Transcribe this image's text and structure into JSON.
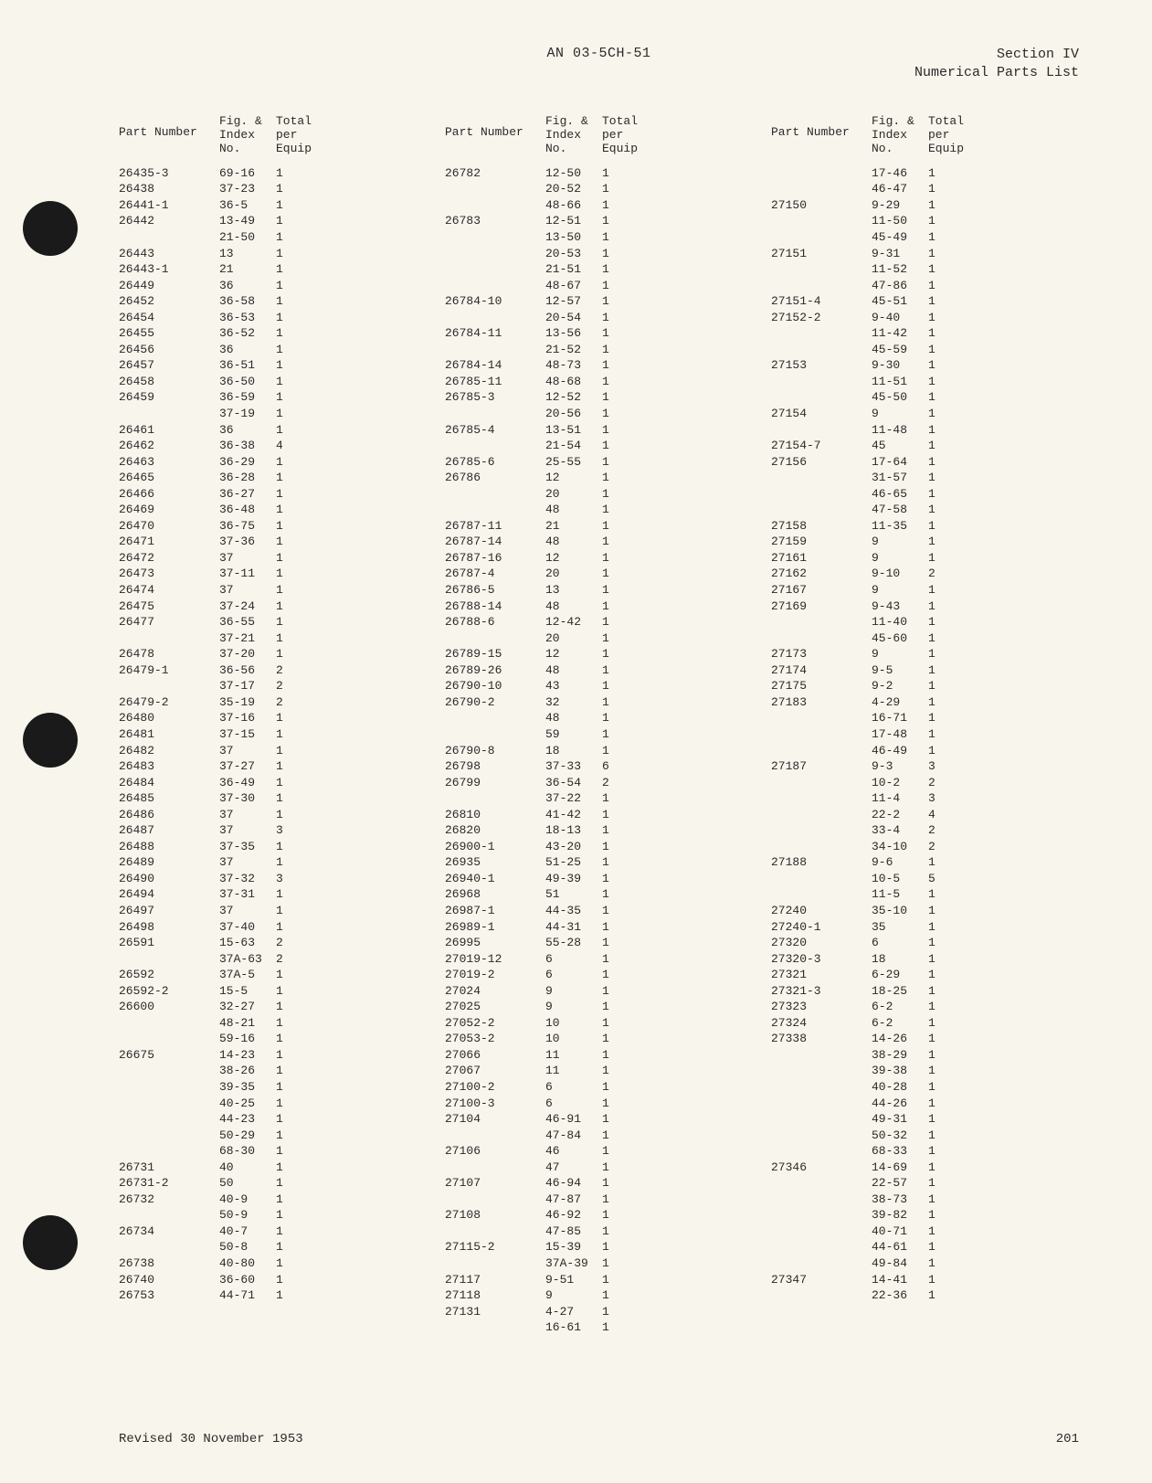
{
  "header": {
    "doc_id": "AN 03-5CH-51",
    "section_line1": "Section IV",
    "section_line2": "Numerical Parts List"
  },
  "column_headers": {
    "part": "Part Number",
    "fig1": "Fig. &",
    "fig2": "Index",
    "fig3": "No.",
    "tot1": "Total",
    "tot2": "per",
    "tot3": "Equip"
  },
  "columns": [
    [
      {
        "p": "26435-3",
        "f": "69-16",
        "t": "1"
      },
      {
        "p": "26438",
        "f": "37-23",
        "t": "1"
      },
      {
        "p": "26441-1",
        "f": "36-5",
        "t": "1"
      },
      {
        "p": "26442",
        "f": "13-49",
        "t": "1"
      },
      {
        "p": "",
        "f": "21-50",
        "t": "1"
      },
      {
        "p": "26443",
        "f": "13",
        "t": "1"
      },
      {
        "p": "26443-1",
        "f": "21",
        "t": "1"
      },
      {
        "p": "26449",
        "f": "36",
        "t": "1"
      },
      {
        "p": "26452",
        "f": "36-58",
        "t": "1"
      },
      {
        "p": "26454",
        "f": "36-53",
        "t": "1"
      },
      {
        "p": "26455",
        "f": "36-52",
        "t": "1"
      },
      {
        "p": "26456",
        "f": "36",
        "t": "1"
      },
      {
        "p": "26457",
        "f": "36-51",
        "t": "1"
      },
      {
        "p": "26458",
        "f": "36-50",
        "t": "1"
      },
      {
        "p": "26459",
        "f": "36-59",
        "t": "1"
      },
      {
        "p": "",
        "f": "37-19",
        "t": "1"
      },
      {
        "p": "26461",
        "f": "36",
        "t": "1"
      },
      {
        "p": "26462",
        "f": "36-38",
        "t": "4"
      },
      {
        "p": "26463",
        "f": "36-29",
        "t": "1"
      },
      {
        "p": "26465",
        "f": "36-28",
        "t": "1"
      },
      {
        "p": "26466",
        "f": "36-27",
        "t": "1"
      },
      {
        "p": "26469",
        "f": "36-48",
        "t": "1"
      },
      {
        "p": "26470",
        "f": "36-75",
        "t": "1"
      },
      {
        "p": "26471",
        "f": "37-36",
        "t": "1"
      },
      {
        "p": "26472",
        "f": "37",
        "t": "1"
      },
      {
        "p": "26473",
        "f": "37-11",
        "t": "1"
      },
      {
        "p": "26474",
        "f": "37",
        "t": "1"
      },
      {
        "p": "26475",
        "f": "37-24",
        "t": "1"
      },
      {
        "p": "26477",
        "f": "36-55",
        "t": "1"
      },
      {
        "p": "",
        "f": "37-21",
        "t": "1"
      },
      {
        "p": "26478",
        "f": "37-20",
        "t": "1"
      },
      {
        "p": "26479-1",
        "f": "36-56",
        "t": "2"
      },
      {
        "p": "",
        "f": "37-17",
        "t": "2"
      },
      {
        "p": "26479-2",
        "f": "35-19",
        "t": "2"
      },
      {
        "p": "26480",
        "f": "37-16",
        "t": "1"
      },
      {
        "p": "26481",
        "f": "37-15",
        "t": "1"
      },
      {
        "p": "26482",
        "f": "37",
        "t": "1"
      },
      {
        "p": "26483",
        "f": "37-27",
        "t": "1"
      },
      {
        "p": "26484",
        "f": "36-49",
        "t": "1"
      },
      {
        "p": "26485",
        "f": "37-30",
        "t": "1"
      },
      {
        "p": "26486",
        "f": "37",
        "t": "1"
      },
      {
        "p": "26487",
        "f": "37",
        "t": "3"
      },
      {
        "p": "26488",
        "f": "37-35",
        "t": "1"
      },
      {
        "p": "26489",
        "f": "37",
        "t": "1"
      },
      {
        "p": "26490",
        "f": "37-32",
        "t": "3"
      },
      {
        "p": "26494",
        "f": "37-31",
        "t": "1"
      },
      {
        "p": "26497",
        "f": "37",
        "t": "1"
      },
      {
        "p": "26498",
        "f": "37-40",
        "t": "1"
      },
      {
        "p": "26591",
        "f": "15-63",
        "t": "2"
      },
      {
        "p": "",
        "f": "37A-63",
        "t": "2"
      },
      {
        "p": "26592",
        "f": "37A-5",
        "t": "1"
      },
      {
        "p": "26592-2",
        "f": "15-5",
        "t": "1"
      },
      {
        "p": "26600",
        "f": "32-27",
        "t": "1"
      },
      {
        "p": "",
        "f": "48-21",
        "t": "1"
      },
      {
        "p": "",
        "f": "59-16",
        "t": "1"
      },
      {
        "p": "26675",
        "f": "14-23",
        "t": "1"
      },
      {
        "p": "",
        "f": "38-26",
        "t": "1"
      },
      {
        "p": "",
        "f": "39-35",
        "t": "1"
      },
      {
        "p": "",
        "f": "40-25",
        "t": "1"
      },
      {
        "p": "",
        "f": "44-23",
        "t": "1"
      },
      {
        "p": "",
        "f": "50-29",
        "t": "1"
      },
      {
        "p": "",
        "f": "68-30",
        "t": "1"
      },
      {
        "p": "26731",
        "f": "40",
        "t": "1"
      },
      {
        "p": "26731-2",
        "f": "50",
        "t": "1"
      },
      {
        "p": "26732",
        "f": "40-9",
        "t": "1"
      },
      {
        "p": "",
        "f": "50-9",
        "t": "1"
      },
      {
        "p": "26734",
        "f": "40-7",
        "t": "1"
      },
      {
        "p": "",
        "f": "50-8",
        "t": "1"
      },
      {
        "p": "26738",
        "f": "40-80",
        "t": "1"
      },
      {
        "p": "26740",
        "f": "36-60",
        "t": "1"
      },
      {
        "p": "26753",
        "f": "44-71",
        "t": "1"
      }
    ],
    [
      {
        "p": "26782",
        "f": "12-50",
        "t": "1"
      },
      {
        "p": "",
        "f": "20-52",
        "t": "1"
      },
      {
        "p": "",
        "f": "48-66",
        "t": "1"
      },
      {
        "p": "26783",
        "f": "12-51",
        "t": "1"
      },
      {
        "p": "",
        "f": "13-50",
        "t": "1"
      },
      {
        "p": "",
        "f": "20-53",
        "t": "1"
      },
      {
        "p": "",
        "f": "21-51",
        "t": "1"
      },
      {
        "p": "",
        "f": "48-67",
        "t": "1"
      },
      {
        "p": "26784-10",
        "f": "12-57",
        "t": "1"
      },
      {
        "p": "",
        "f": "20-54",
        "t": "1"
      },
      {
        "p": "26784-11",
        "f": "13-56",
        "t": "1"
      },
      {
        "p": "",
        "f": "21-52",
        "t": "1"
      },
      {
        "p": "26784-14",
        "f": "48-73",
        "t": "1"
      },
      {
        "p": "26785-11",
        "f": "48-68",
        "t": "1"
      },
      {
        "p": "26785-3",
        "f": "12-52",
        "t": "1"
      },
      {
        "p": "",
        "f": "20-56",
        "t": "1"
      },
      {
        "p": "26785-4",
        "f": "13-51",
        "t": "1"
      },
      {
        "p": "",
        "f": "21-54",
        "t": "1"
      },
      {
        "p": "26785-6",
        "f": "25-55",
        "t": "1"
      },
      {
        "p": "26786",
        "f": "12",
        "t": "1"
      },
      {
        "p": "",
        "f": "20",
        "t": "1"
      },
      {
        "p": "",
        "f": "48",
        "t": "1"
      },
      {
        "p": "26787-11",
        "f": "21",
        "t": "1"
      },
      {
        "p": "26787-14",
        "f": "48",
        "t": "1"
      },
      {
        "p": "26787-16",
        "f": "12",
        "t": "1"
      },
      {
        "p": "26787-4",
        "f": "20",
        "t": "1"
      },
      {
        "p": "26786-5",
        "f": "13",
        "t": "1"
      },
      {
        "p": "26788-14",
        "f": "48",
        "t": "1"
      },
      {
        "p": "26788-6",
        "f": "12-42",
        "t": "1"
      },
      {
        "p": "",
        "f": "20",
        "t": "1"
      },
      {
        "p": "26789-15",
        "f": "12",
        "t": "1"
      },
      {
        "p": "26789-26",
        "f": "48",
        "t": "1"
      },
      {
        "p": "26790-10",
        "f": "43",
        "t": "1"
      },
      {
        "p": "26790-2",
        "f": "32",
        "t": "1"
      },
      {
        "p": "",
        "f": "48",
        "t": "1"
      },
      {
        "p": "",
        "f": "59",
        "t": "1"
      },
      {
        "p": "26790-8",
        "f": "18",
        "t": "1"
      },
      {
        "p": "26798",
        "f": "37-33",
        "t": "6"
      },
      {
        "p": "26799",
        "f": "36-54",
        "t": "2"
      },
      {
        "p": "",
        "f": "37-22",
        "t": "1"
      },
      {
        "p": "26810",
        "f": "41-42",
        "t": "1"
      },
      {
        "p": "26820",
        "f": "18-13",
        "t": "1"
      },
      {
        "p": "26900-1",
        "f": "43-20",
        "t": "1"
      },
      {
        "p": "26935",
        "f": "51-25",
        "t": "1"
      },
      {
        "p": "26940-1",
        "f": "49-39",
        "t": "1"
      },
      {
        "p": "26968",
        "f": "51",
        "t": "1"
      },
      {
        "p": "26987-1",
        "f": "44-35",
        "t": "1"
      },
      {
        "p": "26989-1",
        "f": "44-31",
        "t": "1"
      },
      {
        "p": "26995",
        "f": "55-28",
        "t": "1"
      },
      {
        "p": "27019-12",
        "f": "6",
        "t": "1"
      },
      {
        "p": "27019-2",
        "f": "6",
        "t": "1"
      },
      {
        "p": "27024",
        "f": "9",
        "t": "1"
      },
      {
        "p": "27025",
        "f": "9",
        "t": "1"
      },
      {
        "p": "27052-2",
        "f": "10",
        "t": "1"
      },
      {
        "p": "27053-2",
        "f": "10",
        "t": "1"
      },
      {
        "p": "27066",
        "f": "11",
        "t": "1"
      },
      {
        "p": "27067",
        "f": "11",
        "t": "1"
      },
      {
        "p": "27100-2",
        "f": "6",
        "t": "1"
      },
      {
        "p": "27100-3",
        "f": "6",
        "t": "1"
      },
      {
        "p": "27104",
        "f": "46-91",
        "t": "1"
      },
      {
        "p": "",
        "f": "47-84",
        "t": "1"
      },
      {
        "p": "27106",
        "f": "46",
        "t": "1"
      },
      {
        "p": "",
        "f": "47",
        "t": "1"
      },
      {
        "p": "27107",
        "f": "46-94",
        "t": "1"
      },
      {
        "p": "",
        "f": "47-87",
        "t": "1"
      },
      {
        "p": "27108",
        "f": "46-92",
        "t": "1"
      },
      {
        "p": "",
        "f": "47-85",
        "t": "1"
      },
      {
        "p": "27115-2",
        "f": "15-39",
        "t": "1"
      },
      {
        "p": "",
        "f": "37A-39",
        "t": "1"
      },
      {
        "p": "27117",
        "f": "9-51",
        "t": "1"
      },
      {
        "p": "27118",
        "f": "9",
        "t": "1"
      },
      {
        "p": "27131",
        "f": "4-27",
        "t": "1"
      },
      {
        "p": "",
        "f": "16-61",
        "t": "1"
      }
    ],
    [
      {
        "p": "",
        "f": "17-46",
        "t": "1"
      },
      {
        "p": "",
        "f": "46-47",
        "t": "1"
      },
      {
        "p": "27150",
        "f": "9-29",
        "t": "1"
      },
      {
        "p": "",
        "f": "11-50",
        "t": "1"
      },
      {
        "p": "",
        "f": "45-49",
        "t": "1"
      },
      {
        "p": "27151",
        "f": "9-31",
        "t": "1"
      },
      {
        "p": "",
        "f": "11-52",
        "t": "1"
      },
      {
        "p": "",
        "f": "47-86",
        "t": "1"
      },
      {
        "p": "27151-4",
        "f": "45-51",
        "t": "1"
      },
      {
        "p": "27152-2",
        "f": "9-40",
        "t": "1"
      },
      {
        "p": "",
        "f": "11-42",
        "t": "1"
      },
      {
        "p": "",
        "f": "45-59",
        "t": "1"
      },
      {
        "p": "27153",
        "f": "9-30",
        "t": "1"
      },
      {
        "p": "",
        "f": "11-51",
        "t": "1"
      },
      {
        "p": "",
        "f": "45-50",
        "t": "1"
      },
      {
        "p": "27154",
        "f": "9",
        "t": "1"
      },
      {
        "p": "",
        "f": "11-48",
        "t": "1"
      },
      {
        "p": "27154-7",
        "f": "45",
        "t": "1"
      },
      {
        "p": "27156",
        "f": "17-64",
        "t": "1"
      },
      {
        "p": "",
        "f": "31-57",
        "t": "1"
      },
      {
        "p": "",
        "f": "46-65",
        "t": "1"
      },
      {
        "p": "",
        "f": "47-58",
        "t": "1"
      },
      {
        "p": "27158",
        "f": "11-35",
        "t": "1"
      },
      {
        "p": "27159",
        "f": "9",
        "t": "1"
      },
      {
        "p": "27161",
        "f": "9",
        "t": "1"
      },
      {
        "p": "27162",
        "f": "9-10",
        "t": "2"
      },
      {
        "p": "27167",
        "f": "9",
        "t": "1"
      },
      {
        "p": "27169",
        "f": "9-43",
        "t": "1"
      },
      {
        "p": "",
        "f": "11-40",
        "t": "1"
      },
      {
        "p": "",
        "f": "45-60",
        "t": "1"
      },
      {
        "p": "27173",
        "f": "9",
        "t": "1"
      },
      {
        "p": "27174",
        "f": "9-5",
        "t": "1"
      },
      {
        "p": "27175",
        "f": "9-2",
        "t": "1"
      },
      {
        "p": "27183",
        "f": "4-29",
        "t": "1"
      },
      {
        "p": "",
        "f": "16-71",
        "t": "1"
      },
      {
        "p": "",
        "f": "17-48",
        "t": "1"
      },
      {
        "p": "",
        "f": "46-49",
        "t": "1"
      },
      {
        "p": "27187",
        "f": "9-3",
        "t": "3"
      },
      {
        "p": "",
        "f": "10-2",
        "t": "2"
      },
      {
        "p": "",
        "f": "11-4",
        "t": "3"
      },
      {
        "p": "",
        "f": "22-2",
        "t": "4"
      },
      {
        "p": "",
        "f": "33-4",
        "t": "2"
      },
      {
        "p": "",
        "f": "34-10",
        "t": "2"
      },
      {
        "p": "27188",
        "f": "9-6",
        "t": "1"
      },
      {
        "p": "",
        "f": "10-5",
        "t": "5"
      },
      {
        "p": "",
        "f": "11-5",
        "t": "1"
      },
      {
        "p": "27240",
        "f": "35-10",
        "t": "1"
      },
      {
        "p": "27240-1",
        "f": "35",
        "t": "1"
      },
      {
        "p": "27320",
        "f": "6",
        "t": "1"
      },
      {
        "p": "27320-3",
        "f": "18",
        "t": "1"
      },
      {
        "p": "27321",
        "f": "6-29",
        "t": "1"
      },
      {
        "p": "27321-3",
        "f": "18-25",
        "t": "1"
      },
      {
        "p": "27323",
        "f": "6-2",
        "t": "1"
      },
      {
        "p": "27324",
        "f": "6-2",
        "t": "1"
      },
      {
        "p": "27338",
        "f": "14-26",
        "t": "1"
      },
      {
        "p": "",
        "f": "38-29",
        "t": "1"
      },
      {
        "p": "",
        "f": "39-38",
        "t": "1"
      },
      {
        "p": "",
        "f": "40-28",
        "t": "1"
      },
      {
        "p": "",
        "f": "44-26",
        "t": "1"
      },
      {
        "p": "",
        "f": "49-31",
        "t": "1"
      },
      {
        "p": "",
        "f": "50-32",
        "t": "1"
      },
      {
        "p": "",
        "f": "68-33",
        "t": "1"
      },
      {
        "p": "27346",
        "f": "14-69",
        "t": "1"
      },
      {
        "p": "",
        "f": "22-57",
        "t": "1"
      },
      {
        "p": "",
        "f": "38-73",
        "t": "1"
      },
      {
        "p": "",
        "f": "39-82",
        "t": "1"
      },
      {
        "p": "",
        "f": "40-71",
        "t": "1"
      },
      {
        "p": "",
        "f": "44-61",
        "t": "1"
      },
      {
        "p": "",
        "f": "49-84",
        "t": "1"
      },
      {
        "p": "27347",
        "f": "14-41",
        "t": "1"
      },
      {
        "p": "",
        "f": "22-36",
        "t": "1"
      }
    ]
  ],
  "footer": {
    "revised": "Revised 30 November 1953",
    "page": "201"
  }
}
